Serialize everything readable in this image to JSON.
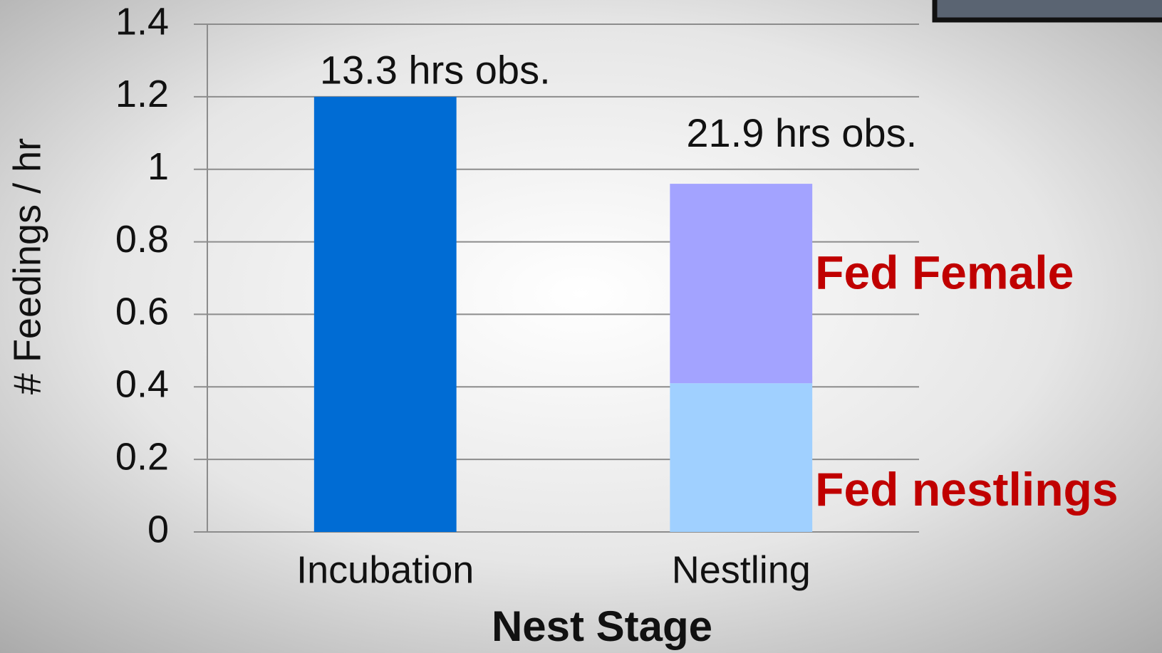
{
  "chart_data": {
    "type": "stacked-bar",
    "x_label": "Nest Stage",
    "y_label": "# Feedings / hr",
    "categories": [
      "Incubation",
      "Nestling"
    ],
    "series": [
      {
        "color": "#006cd4",
        "values": [
          1.2,
          null
        ]
      },
      {
        "name": "Fed nestlings",
        "color": "#a0d0ff",
        "values": [
          null,
          0.41
        ]
      },
      {
        "name": "Fed Female",
        "color": "#a3a3ff",
        "values": [
          null,
          0.55
        ]
      }
    ],
    "annotations": [
      "13.3 hrs obs.",
      "21.9 hrs obs."
    ],
    "ylim": [
      0,
      1.4
    ],
    "yticks": [
      0,
      0.2,
      0.4,
      0.6,
      0.8,
      1,
      1.2,
      1.4
    ],
    "grid": true
  }
}
